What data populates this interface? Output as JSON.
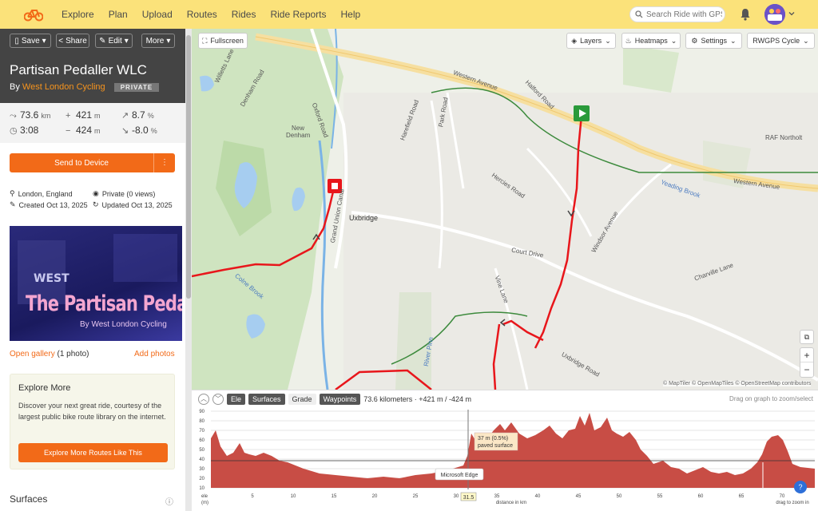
{
  "nav": {
    "links": [
      "Explore",
      "Plan",
      "Upload",
      "Routes",
      "Rides",
      "Ride Reports",
      "Help"
    ],
    "search_placeholder": "Search Ride with GPS"
  },
  "toolbar": {
    "save": "Save",
    "share": "Share",
    "edit": "Edit",
    "more": "More"
  },
  "route": {
    "title": "Partisan Pedaller WLC",
    "by": "By",
    "org": "West London Cycling",
    "privacy_badge": "PRIVATE"
  },
  "stats": {
    "distance": "73.6",
    "distance_unit": "km",
    "ascent": "421",
    "ascent_unit": "m",
    "grade_up": "8.7",
    "grade_up_unit": "%",
    "time": "3:08",
    "descent": "424",
    "descent_unit": "m",
    "grade_down": "-8.0",
    "grade_down_unit": "%"
  },
  "send_button": "Send to Device",
  "meta": {
    "location": "London, England",
    "privacy": "Private (0 views)",
    "created": "Created Oct 13, 2025",
    "updated": "Updated Oct 13, 2025"
  },
  "banner": {
    "title": "The Partisan Pedaller",
    "subtitle": "By West London Cycling"
  },
  "gallery": {
    "open": "Open gallery",
    "count": "(1 photo)",
    "add": "Add photos"
  },
  "explore_more": {
    "title": "Explore More",
    "text": "Discover your next great ride, courtesy of the largest public bike route library on the internet.",
    "button": "Explore More Routes Like This"
  },
  "surfaces_heading": "Surfaces",
  "map": {
    "fullscreen": "Fullscreen",
    "layers": "Layers",
    "heatmaps": "Heatmaps",
    "settings": "Settings",
    "style": "RWGPS Cycle",
    "attribution": "© MapTiler © OpenMapTiles © OpenStreetMap contributors",
    "labels": [
      "Willetts Lane",
      "Denham Road",
      "Oxford Road",
      "New Denham",
      "Western Avenue",
      "Harefield Road",
      "Park Road",
      "Halford Road",
      "RAF Northolt",
      "Western Avenue",
      "Yeading Brook",
      "Hercies Road",
      "Grand Union Canal",
      "Uxbridge",
      "Windsor Avenue",
      "Court Drive",
      "Colne Brook",
      "Charville Lane",
      "Vine Lane",
      "River Pinn",
      "Uxbridge Road"
    ]
  },
  "elevation": {
    "tabs": [
      "Ele",
      "Surfaces",
      "Grade",
      "Waypoints"
    ],
    "summary": "73.6 kilometers · +421 m / -424 m",
    "hint": "Drag on graph to zoom/select",
    "y_label_top": "ele",
    "y_label_unit": "(m)",
    "x_label": "distance in km",
    "zoom_hint": "drag to zoom in",
    "tooltip_line1": "37 m (0.5%)",
    "tooltip_line2": "paved surface",
    "cursor_value": "31.5",
    "edge_tooltip": "Microsoft Edge",
    "y_ticks": [
      "90",
      "80",
      "70",
      "60",
      "50",
      "40",
      "30",
      "20",
      "10"
    ],
    "x_ticks": [
      "5",
      "10",
      "15",
      "20",
      "25",
      "30",
      "35",
      "40",
      "45",
      "50",
      "55",
      "60",
      "65",
      "70"
    ]
  },
  "colors": {
    "nav_bg": "#fbe27a",
    "accent": "#f26a18",
    "route": "#e8161b",
    "elevation_fill": "#c84d45"
  }
}
